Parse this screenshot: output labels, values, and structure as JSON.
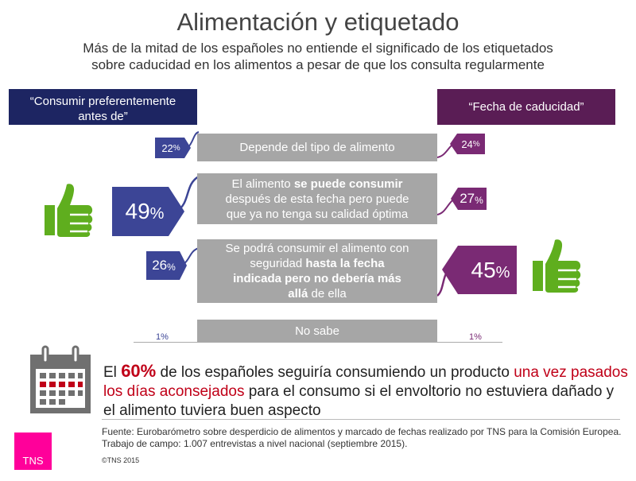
{
  "title": "Alimentación y etiquetado",
  "subtitle_line1": "Más de la mitad de los españoles no entiende el significado de los etiquetados",
  "subtitle_line2": "sobre caducidad en los alimentos a pesar de que los consulta regularmente",
  "colors": {
    "left": "#1d2562",
    "left_tag": "#3c4596",
    "right": "#5a1d55",
    "right_tag": "#7a2a74",
    "statement": "#a6a6a6",
    "thumb": "#5fae1e",
    "accent": "#c00018",
    "tns": "#ff009a"
  },
  "chart_data": {
    "type": "bar",
    "series": [
      {
        "name": "“Consumir preferentemente antes de”",
        "values": [
          22,
          49,
          26,
          1
        ]
      },
      {
        "name": "“Fecha de caducidad”",
        "values": [
          24,
          27,
          45,
          1
        ]
      }
    ],
    "categories": [
      "Depende del tipo de alimento",
      "El alimento se puede consumir después de esta fecha pero puede que ya no tenga su calidad óptima",
      "Se podrá consumir el alimento con seguridad hasta la fecha indicada pero no debería más allá de ella",
      "No sabe"
    ],
    "unit": "%"
  },
  "headers": {
    "left_line1": "“Consumir preferentemente",
    "left_line2": "antes de”",
    "right": "“Fecha de caducidad”"
  },
  "rows": {
    "r1": {
      "text": "Depende del tipo de alimento",
      "left": "22",
      "right": "24"
    },
    "r2": {
      "t1": "El alimento ",
      "b1": "se puede consumir",
      "t2": "después de esta fecha pero puede",
      "t3": "que ya no tenga su calidad óptima",
      "left": "49",
      "right": "27"
    },
    "r3": {
      "t1": "Se podrá consumir el alimento con",
      "t2": "seguridad ",
      "b1": "hasta la fecha",
      "b2": "indicada pero no debería más",
      "b3": "allá",
      "t3": " de ella",
      "left": "26",
      "right": "45"
    },
    "r4": {
      "text": "No sabe",
      "left": "1%",
      "right": "1%"
    }
  },
  "unit_sign": "%",
  "conclusion": {
    "p1": "El ",
    "big": "60%",
    "p2": " de los españoles seguiría consumiendo un producto ",
    "red": "una vez pasados los días aconsejados",
    "p3": " para el consumo si el envoltorio no estuviera dañado y el alimento tuviera buen aspecto"
  },
  "footer": {
    "source": "Fuente: Eurobarómetro sobre desperdicio de alimentos y marcado de fechas realizado por TNS para la Comisión Europea. Trabajo de campo: 1.007 entrevistas a nivel nacional (septiembre 2015).",
    "copyright": "©TNS 2015",
    "logo": "TNS"
  },
  "icons": {
    "thumb": "thumbs-up-icon",
    "calendar": "calendar-icon"
  }
}
